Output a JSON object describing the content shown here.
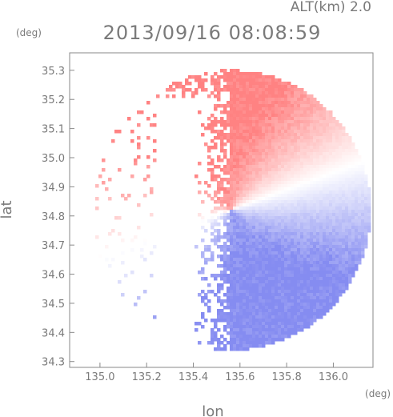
{
  "chart_data": {
    "type": "heatmap",
    "altitude_label": "ALT(km) 2.0",
    "title": "2013/09/16 08:08:59",
    "xlabel": "lon",
    "ylabel": "lat",
    "xunit": "(deg)",
    "yunit": "(deg)",
    "xlim": [
      134.87,
      136.17
    ],
    "ylim": [
      34.28,
      35.36
    ],
    "x_ticks": [
      135.0,
      135.2,
      135.4,
      135.6,
      135.8,
      136.0
    ],
    "x_tick_labels": [
      "135.0",
      "135.2",
      "135.4",
      "135.6",
      "135.8",
      "136.0"
    ],
    "y_ticks": [
      34.3,
      34.4,
      34.5,
      34.6,
      34.7,
      34.8,
      34.9,
      35.0,
      35.1,
      35.2,
      35.3
    ],
    "y_tick_labels": [
      "34.3",
      "34.4",
      "34.5",
      "34.6",
      "34.7",
      "34.8",
      "34.9",
      "35.0",
      "35.1",
      "35.2",
      "35.3"
    ],
    "radar_center": {
      "lon": 135.56,
      "lat": 34.82
    },
    "radar_range_deg": 0.6,
    "colors": {
      "approaching": "#7f86f0",
      "receding": "#ff7b7b",
      "neutral": "#ffffff",
      "axis": "#7a7a7a"
    },
    "grid": false,
    "legend": "none"
  }
}
